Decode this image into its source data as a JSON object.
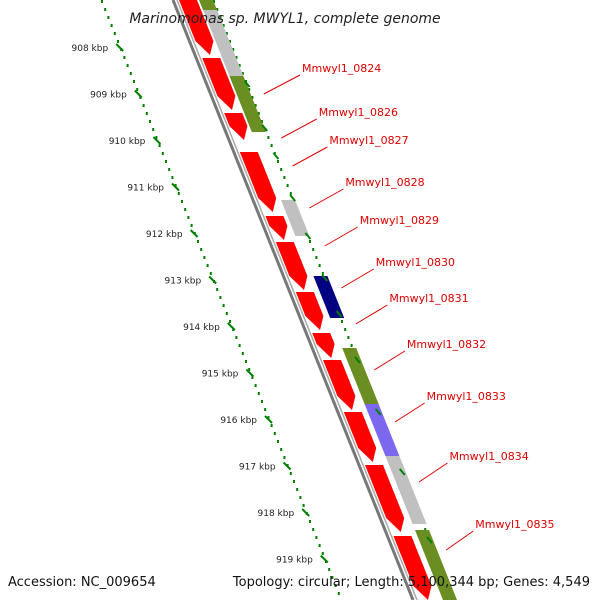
{
  "title": "Marinomonas sp. MWYL1, complete genome",
  "footer": {
    "accession": "Accession: NC_009654",
    "summary": "Topology: circular; Length: 5,100,344 bp; Genes: 4,549"
  },
  "colors": {
    "backbone": "#777777",
    "gene_fwd": "#ff0000",
    "gene_label": "#e00000",
    "scale_dots": "#008000",
    "grey_feature": "#c0c0c0",
    "green_feature": "#6b8e23",
    "navy_feature": "#000080",
    "violet_feature": "#7b68ee"
  },
  "scale": {
    "unit": "kbp",
    "ticks": [
      "908 kbp",
      "909 kbp",
      "910 kbp",
      "911 kbp",
      "912 kbp",
      "913 kbp",
      "914 kbp",
      "915 kbp",
      "916 kbp",
      "917 kbp",
      "918 kbp",
      "919 kbp"
    ]
  },
  "genes": [
    "Mmwyl1_0824",
    "Mmwyl1_0826",
    "Mmwyl1_0827",
    "Mmwyl1_0828",
    "Mmwyl1_0829",
    "Mmwyl1_0830",
    "Mmwyl1_0831",
    "Mmwyl1_0832",
    "Mmwyl1_0833",
    "Mmwyl1_0834",
    "Mmwyl1_0835"
  ]
}
